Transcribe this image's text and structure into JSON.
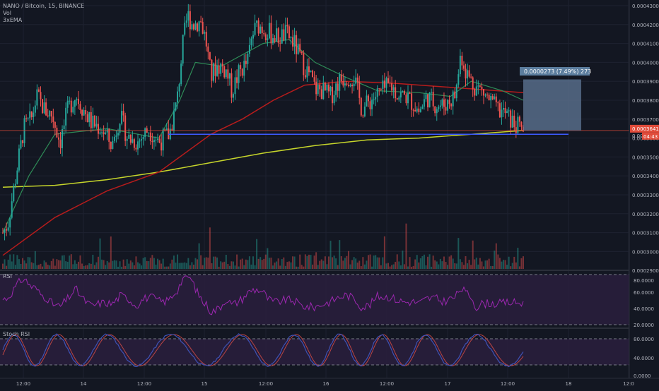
{
  "legend": {
    "symbol_line": "NANO / Bitcoin, 15, BINANCE",
    "vol_label": "Vol",
    "ema_label": "3xEMA"
  },
  "panes": {
    "rsi_label": "RSI",
    "stoch_label": "Stoch RSI"
  },
  "price_axis": {
    "ticks": [
      "0.0004300",
      "0.0004200",
      "0.0004100",
      "0.0004000",
      "0.0003900",
      "0.0003800",
      "0.0003700",
      "0.0003600",
      "0.0003500",
      "0.0003400",
      "0.0003300",
      "0.0003200",
      "0.0003100",
      "0.0003000",
      "0.0002900"
    ],
    "current_price_label": "0.0003641",
    "countdown_label": "04:43",
    "partial_label": "0.00"
  },
  "rsi_axis": {
    "ticks": [
      "80.0000",
      "60.0000",
      "40.0000",
      "20.0000"
    ]
  },
  "stoch_axis": {
    "ticks": [
      "80.0000",
      "40.0000",
      "0.0000"
    ]
  },
  "time_axis": {
    "ticks": [
      "12:00",
      "14",
      "12:00",
      "15",
      "12:00",
      "16",
      "12:00",
      "17",
      "12:00",
      "18",
      "12:0"
    ]
  },
  "measure": {
    "label": "0.0000273 (7.49%) 273"
  },
  "colors": {
    "background": "#131722",
    "grid": "#1e2230",
    "axis_text": "#b2b5be",
    "up": "#26a69a",
    "down": "#ef5350",
    "ema_fast": "#2e8b57",
    "ema_mid": "#b71c1c",
    "ema_slow": "#c6d52b",
    "rsi_line": "#9c27b0",
    "rsi_fill": "#2a1f3d",
    "stoch_k": "#3f51b5",
    "stoch_d": "#b44",
    "measure_fill": "#5b7290",
    "measure_label_bg": "#5b7d9e",
    "support_line": "#3d5afe",
    "price_label_bg": "#e04b3a"
  },
  "chart_data": {
    "type": "candlestick",
    "title": "NANO / Bitcoin, 15, BINANCE",
    "y_range": [
      0.00029,
      0.00043
    ],
    "close_path": [
      [
        0.0,
        0.00031
      ],
      [
        0.01,
        0.000315
      ],
      [
        0.025,
        0.00034
      ],
      [
        0.04,
        0.000365
      ],
      [
        0.055,
        0.00037
      ],
      [
        0.065,
        0.000382
      ],
      [
        0.08,
        0.000375
      ],
      [
        0.095,
        0.000372
      ],
      [
        0.11,
        0.000358
      ],
      [
        0.125,
        0.000375
      ],
      [
        0.14,
        0.000383
      ],
      [
        0.155,
        0.000375
      ],
      [
        0.17,
        0.000368
      ],
      [
        0.19,
        0.000365
      ],
      [
        0.21,
        0.000356
      ],
      [
        0.225,
        0.000372
      ],
      [
        0.24,
        0.00036
      ],
      [
        0.26,
        0.000358
      ],
      [
        0.28,
        0.000365
      ],
      [
        0.3,
        0.000358
      ],
      [
        0.32,
        0.000362
      ],
      [
        0.335,
        0.00038
      ],
      [
        0.345,
        0.000408
      ],
      [
        0.355,
        0.000425
      ],
      [
        0.365,
        0.00042
      ],
      [
        0.38,
        0.000422
      ],
      [
        0.39,
        0.000412
      ],
      [
        0.4,
        0.000392
      ],
      [
        0.41,
        0.000398
      ],
      [
        0.42,
        0.000398
      ],
      [
        0.43,
        0.000395
      ],
      [
        0.44,
        0.000385
      ],
      [
        0.455,
        0.000395
      ],
      [
        0.47,
        0.0004
      ],
      [
        0.48,
        0.000415
      ],
      [
        0.49,
        0.00042
      ],
      [
        0.5,
        0.000418
      ],
      [
        0.515,
        0.000415
      ],
      [
        0.53,
        0.000413
      ],
      [
        0.545,
        0.000415
      ],
      [
        0.56,
        0.00041
      ],
      [
        0.575,
        0.0004
      ],
      [
        0.59,
        0.000393
      ],
      [
        0.6,
        0.000386
      ],
      [
        0.615,
        0.000385
      ],
      [
        0.63,
        0.000382
      ],
      [
        0.645,
        0.00039
      ],
      [
        0.66,
        0.000393
      ],
      [
        0.675,
        0.000392
      ],
      [
        0.69,
        0.000375
      ],
      [
        0.7,
        0.000378
      ],
      [
        0.715,
        0.000382
      ],
      [
        0.73,
        0.000385
      ],
      [
        0.745,
        0.000388
      ],
      [
        0.76,
        0.000383
      ],
      [
        0.775,
        0.000382
      ],
      [
        0.79,
        0.000378
      ],
      [
        0.8,
        0.000374
      ],
      [
        0.815,
        0.000382
      ],
      [
        0.83,
        0.000378
      ],
      [
        0.845,
        0.000377
      ],
      [
        0.86,
        0.00038
      ],
      [
        0.87,
        0.000383
      ],
      [
        0.88,
        0.000405
      ],
      [
        0.89,
        0.000395
      ],
      [
        0.905,
        0.000388
      ],
      [
        0.92,
        0.000385
      ],
      [
        0.935,
        0.00038
      ],
      [
        0.95,
        0.000375
      ],
      [
        0.965,
        0.000373
      ],
      [
        0.98,
        0.000368
      ],
      [
        1.0,
        0.000364
      ]
    ],
    "ema_fast_path": [
      [
        0,
        0.00031
      ],
      [
        0.05,
        0.00034
      ],
      [
        0.1,
        0.000362
      ],
      [
        0.2,
        0.000365
      ],
      [
        0.3,
        0.00036
      ],
      [
        0.34,
        0.00038
      ],
      [
        0.37,
        0.0004
      ],
      [
        0.42,
        0.000398
      ],
      [
        0.5,
        0.00041
      ],
      [
        0.55,
        0.000412
      ],
      [
        0.6,
        0.0004
      ],
      [
        0.66,
        0.000392
      ],
      [
        0.72,
        0.000385
      ],
      [
        0.8,
        0.000384
      ],
      [
        0.86,
        0.000382
      ],
      [
        0.9,
        0.00039
      ],
      [
        0.96,
        0.000385
      ],
      [
        1.0,
        0.00038
      ]
    ],
    "ema_mid_path": [
      [
        0,
        0.000298
      ],
      [
        0.1,
        0.000318
      ],
      [
        0.2,
        0.000332
      ],
      [
        0.3,
        0.000342
      ],
      [
        0.34,
        0.00035
      ],
      [
        0.4,
        0.000362
      ],
      [
        0.46,
        0.00037
      ],
      [
        0.52,
        0.00038
      ],
      [
        0.58,
        0.000388
      ],
      [
        0.66,
        0.00039
      ],
      [
        0.75,
        0.000389
      ],
      [
        0.85,
        0.000387
      ],
      [
        0.9,
        0.000386
      ],
      [
        1.0,
        0.000384
      ]
    ],
    "ema_slow_path": [
      [
        0,
        0.000334
      ],
      [
        0.1,
        0.000335
      ],
      [
        0.2,
        0.000338
      ],
      [
        0.3,
        0.000342
      ],
      [
        0.4,
        0.000347
      ],
      [
        0.5,
        0.000352
      ],
      [
        0.6,
        0.000356
      ],
      [
        0.7,
        0.000359
      ],
      [
        0.8,
        0.00036
      ],
      [
        0.9,
        0.000362
      ],
      [
        1.0,
        0.000364
      ]
    ],
    "support_level": 0.000362,
    "measure_box": {
      "from_price": 0.000364,
      "to_price": 0.000391,
      "change": "0.0000273 (7.49%) 273"
    },
    "rsi_range": [
      20,
      90
    ],
    "stoch_range": [
      -10,
      100
    ]
  }
}
